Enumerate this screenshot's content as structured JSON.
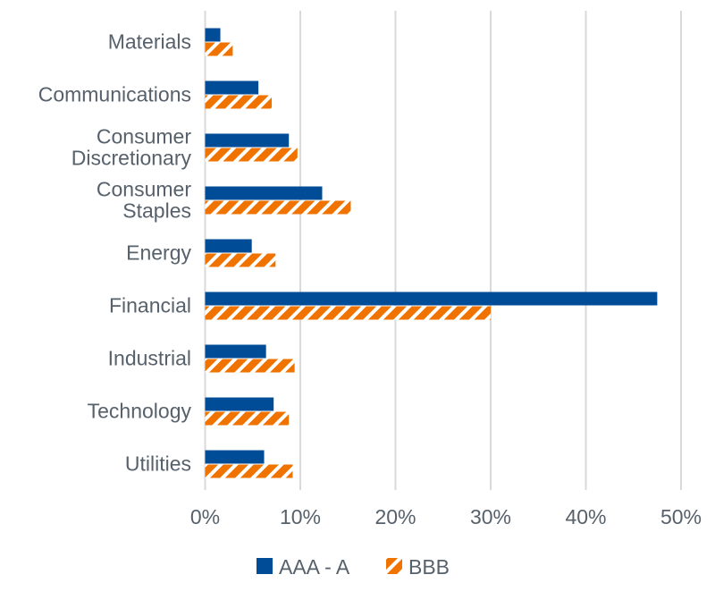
{
  "chart_data": {
    "type": "bar",
    "orientation": "horizontal",
    "categories": [
      [
        "Materials"
      ],
      [
        "Communications"
      ],
      [
        "Consumer",
        "Discretionary"
      ],
      [
        "Consumer",
        "Staples"
      ],
      [
        "Energy"
      ],
      [
        "Financial"
      ],
      [
        "Industrial"
      ],
      [
        "Technology"
      ],
      [
        "Utilities"
      ]
    ],
    "series": [
      {
        "name": "AAA - A",
        "color": "#004C97",
        "pattern": "solid",
        "values": [
          1.6,
          5.6,
          8.8,
          12.3,
          4.9,
          47.5,
          6.4,
          7.2,
          6.2
        ]
      },
      {
        "name": "BBB",
        "color": "#F07300",
        "pattern": "diagonal-hatch",
        "values": [
          2.9,
          7.0,
          9.7,
          15.3,
          7.4,
          30.0,
          9.4,
          8.8,
          9.2
        ]
      }
    ],
    "xlim": [
      0,
      50
    ],
    "xticks": [
      "0%",
      "10%",
      "20%",
      "30%",
      "40%",
      "50%"
    ],
    "grid": "vertical",
    "legend": "bottom",
    "title": "",
    "xlabel": "",
    "ylabel": ""
  }
}
